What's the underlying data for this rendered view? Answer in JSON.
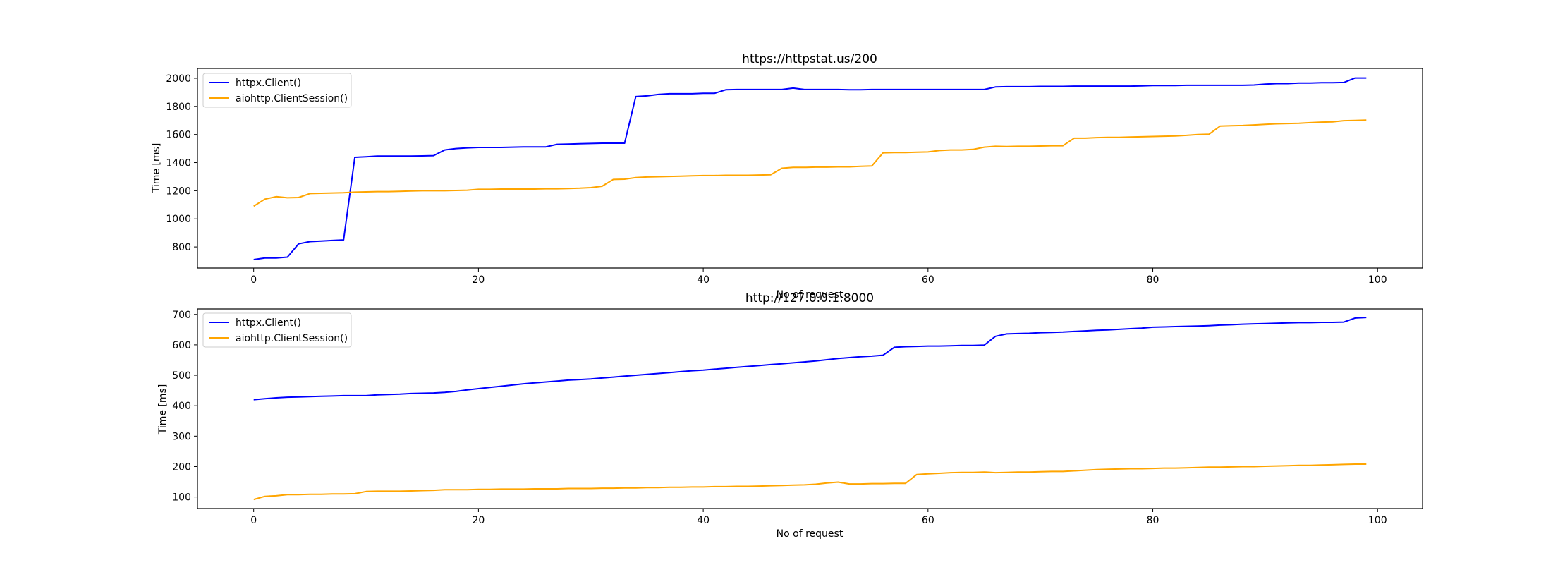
{
  "chart_data": [
    {
      "type": "line",
      "title": "https://httpstat.us/200",
      "xlabel": "No of request",
      "ylabel": "Time [ms]",
      "xlim": [
        -5,
        104
      ],
      "ylim": [
        650,
        2070
      ],
      "xticks": [
        0,
        20,
        40,
        60,
        80,
        100
      ],
      "yticks": [
        800,
        1000,
        1200,
        1400,
        1600,
        1800,
        2000
      ],
      "grid": false,
      "legend_position": "upper-left",
      "series": [
        {
          "name": "httpx.Client()",
          "color": "#0000ff",
          "x": [
            0,
            1,
            2,
            3,
            4,
            5,
            6,
            7,
            8,
            9,
            10,
            11,
            12,
            13,
            14,
            15,
            16,
            17,
            18,
            19,
            20,
            21,
            22,
            23,
            24,
            25,
            26,
            27,
            28,
            29,
            30,
            31,
            32,
            33,
            34,
            35,
            36,
            37,
            38,
            39,
            40,
            41,
            42,
            43,
            44,
            45,
            46,
            47,
            48,
            49,
            50,
            51,
            52,
            53,
            54,
            55,
            56,
            57,
            58,
            59,
            60,
            61,
            62,
            63,
            64,
            65,
            66,
            67,
            68,
            69,
            70,
            71,
            72,
            73,
            74,
            75,
            76,
            77,
            78,
            79,
            80,
            81,
            82,
            83,
            84,
            85,
            86,
            87,
            88,
            89,
            90,
            91,
            92,
            93,
            94,
            95,
            96,
            97,
            98,
            99
          ],
          "values": [
            710,
            722,
            722,
            728,
            822,
            838,
            842,
            846,
            850,
            1438,
            1442,
            1447,
            1447,
            1447,
            1447,
            1448,
            1450,
            1490,
            1500,
            1505,
            1508,
            1508,
            1508,
            1510,
            1512,
            1512,
            1512,
            1530,
            1532,
            1534,
            1536,
            1538,
            1538,
            1538,
            1870,
            1875,
            1885,
            1890,
            1890,
            1890,
            1893,
            1893,
            1918,
            1920,
            1920,
            1920,
            1920,
            1920,
            1930,
            1920,
            1920,
            1920,
            1920,
            1918,
            1918,
            1920,
            1920,
            1920,
            1920,
            1920,
            1920,
            1920,
            1920,
            1920,
            1920,
            1920,
            1938,
            1940,
            1940,
            1940,
            1942,
            1942,
            1942,
            1944,
            1944,
            1944,
            1944,
            1944,
            1944,
            1946,
            1948,
            1948,
            1948,
            1950,
            1950,
            1950,
            1950,
            1950,
            1950,
            1952,
            1958,
            1962,
            1962,
            1966,
            1966,
            1968,
            1968,
            1970,
            2002,
            2002
          ]
        },
        {
          "name": "aiohttp.ClientSession()",
          "color": "#ffa500",
          "x": [
            0,
            1,
            2,
            3,
            4,
            5,
            6,
            7,
            8,
            9,
            10,
            11,
            12,
            13,
            14,
            15,
            16,
            17,
            18,
            19,
            20,
            21,
            22,
            23,
            24,
            25,
            26,
            27,
            28,
            29,
            30,
            31,
            32,
            33,
            34,
            35,
            36,
            37,
            38,
            39,
            40,
            41,
            42,
            43,
            44,
            45,
            46,
            47,
            48,
            49,
            50,
            51,
            52,
            53,
            54,
            55,
            56,
            57,
            58,
            59,
            60,
            61,
            62,
            63,
            64,
            65,
            66,
            67,
            68,
            69,
            70,
            71,
            72,
            73,
            74,
            75,
            76,
            77,
            78,
            79,
            80,
            81,
            82,
            83,
            84,
            85,
            86,
            87,
            88,
            89,
            90,
            91,
            92,
            93,
            94,
            95,
            96,
            97,
            98,
            99
          ],
          "values": [
            1090,
            1140,
            1158,
            1150,
            1152,
            1180,
            1182,
            1184,
            1186,
            1190,
            1192,
            1194,
            1194,
            1196,
            1198,
            1200,
            1200,
            1200,
            1202,
            1204,
            1210,
            1210,
            1212,
            1212,
            1212,
            1212,
            1214,
            1214,
            1216,
            1218,
            1222,
            1232,
            1280,
            1282,
            1294,
            1298,
            1300,
            1302,
            1304,
            1306,
            1308,
            1308,
            1310,
            1310,
            1310,
            1312,
            1314,
            1360,
            1366,
            1366,
            1368,
            1368,
            1370,
            1370,
            1374,
            1376,
            1470,
            1472,
            1472,
            1474,
            1476,
            1486,
            1490,
            1490,
            1494,
            1510,
            1516,
            1514,
            1516,
            1516,
            1518,
            1520,
            1520,
            1574,
            1574,
            1578,
            1580,
            1580,
            1582,
            1584,
            1586,
            1588,
            1590,
            1594,
            1600,
            1602,
            1660,
            1662,
            1664,
            1668,
            1672,
            1676,
            1678,
            1680,
            1684,
            1688,
            1690,
            1698,
            1700,
            1702
          ]
        }
      ]
    },
    {
      "type": "line",
      "title": "http://127.0.0.1:8000",
      "xlabel": "No of request",
      "ylabel": "Time [ms]",
      "xlim": [
        -5,
        104
      ],
      "ylim": [
        62,
        718
      ],
      "xticks": [
        0,
        20,
        40,
        60,
        80,
        100
      ],
      "yticks": [
        100,
        200,
        300,
        400,
        500,
        600,
        700
      ],
      "grid": false,
      "legend_position": "upper-left",
      "series": [
        {
          "name": "httpx.Client()",
          "color": "#0000ff",
          "x": [
            0,
            1,
            2,
            3,
            4,
            5,
            6,
            7,
            8,
            9,
            10,
            11,
            12,
            13,
            14,
            15,
            16,
            17,
            18,
            19,
            20,
            21,
            22,
            23,
            24,
            25,
            26,
            27,
            28,
            29,
            30,
            31,
            32,
            33,
            34,
            35,
            36,
            37,
            38,
            39,
            40,
            41,
            42,
            43,
            44,
            45,
            46,
            47,
            48,
            49,
            50,
            51,
            52,
            53,
            54,
            55,
            56,
            57,
            58,
            59,
            60,
            61,
            62,
            63,
            64,
            65,
            66,
            67,
            68,
            69,
            70,
            71,
            72,
            73,
            74,
            75,
            76,
            77,
            78,
            79,
            80,
            81,
            82,
            83,
            84,
            85,
            86,
            87,
            88,
            89,
            90,
            91,
            92,
            93,
            94,
            95,
            96,
            97,
            98,
            99
          ],
          "values": [
            420,
            423,
            426,
            428,
            429,
            430,
            431,
            432,
            433,
            433,
            433,
            436,
            437,
            438,
            440,
            441,
            442,
            444,
            447,
            452,
            456,
            460,
            464,
            468,
            472,
            475,
            478,
            481,
            484,
            486,
            488,
            491,
            494,
            497,
            500,
            503,
            506,
            509,
            512,
            515,
            517,
            520,
            523,
            526,
            529,
            532,
            535,
            538,
            541,
            544,
            547,
            551,
            555,
            558,
            561,
            563,
            566,
            592,
            594,
            595,
            596,
            596,
            597,
            598,
            598,
            599,
            628,
            636,
            637,
            638,
            640,
            641,
            642,
            644,
            646,
            648,
            649,
            651,
            653,
            655,
            658,
            659,
            660,
            661,
            662,
            663,
            665,
            666,
            668,
            669,
            670,
            671,
            672,
            673,
            673,
            674,
            674,
            675,
            688,
            690
          ]
        },
        {
          "name": "aiohttp.ClientSession()",
          "color": "#ffa500",
          "x": [
            0,
            1,
            2,
            3,
            4,
            5,
            6,
            7,
            8,
            9,
            10,
            11,
            12,
            13,
            14,
            15,
            16,
            17,
            18,
            19,
            20,
            21,
            22,
            23,
            24,
            25,
            26,
            27,
            28,
            29,
            30,
            31,
            32,
            33,
            34,
            35,
            36,
            37,
            38,
            39,
            40,
            41,
            42,
            43,
            44,
            45,
            46,
            47,
            48,
            49,
            50,
            51,
            52,
            53,
            54,
            55,
            56,
            57,
            58,
            59,
            60,
            61,
            62,
            63,
            64,
            65,
            66,
            67,
            68,
            69,
            70,
            71,
            72,
            73,
            74,
            75,
            76,
            77,
            78,
            79,
            80,
            81,
            82,
            83,
            84,
            85,
            86,
            87,
            88,
            89,
            90,
            91,
            92,
            93,
            94,
            95,
            96,
            97,
            98,
            99
          ],
          "values": [
            92,
            102,
            104,
            108,
            108,
            109,
            109,
            110,
            110,
            111,
            118,
            119,
            119,
            119,
            120,
            121,
            122,
            124,
            124,
            124,
            125,
            125,
            126,
            126,
            126,
            127,
            127,
            127,
            128,
            128,
            128,
            129,
            129,
            130,
            130,
            131,
            131,
            132,
            132,
            133,
            133,
            134,
            134,
            135,
            135,
            136,
            137,
            138,
            139,
            140,
            142,
            146,
            149,
            143,
            143,
            144,
            144,
            145,
            145,
            174,
            176,
            178,
            180,
            181,
            181,
            182,
            180,
            181,
            182,
            182,
            183,
            184,
            184,
            186,
            188,
            190,
            191,
            192,
            193,
            193,
            194,
            195,
            195,
            196,
            197,
            198,
            198,
            199,
            200,
            200,
            201,
            202,
            203,
            204,
            204,
            205,
            206,
            207,
            208,
            208
          ]
        }
      ]
    }
  ]
}
